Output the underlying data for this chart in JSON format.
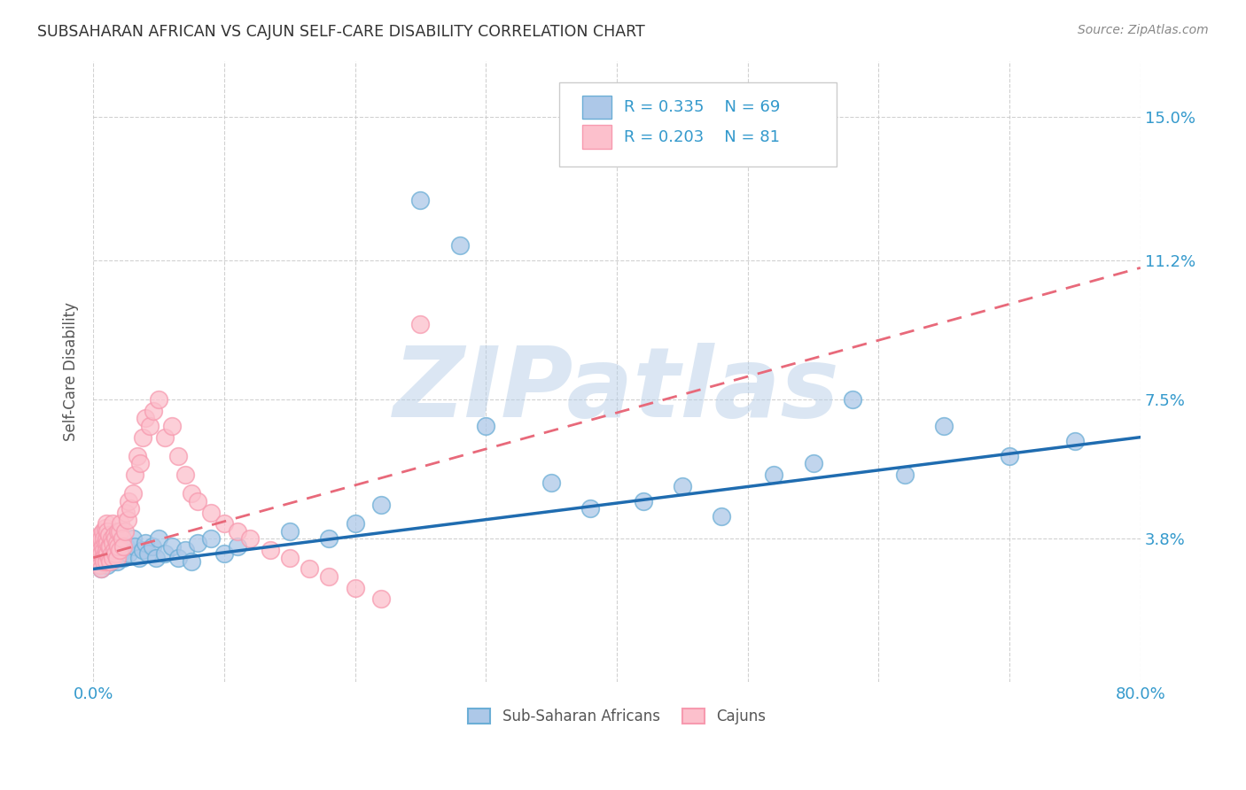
{
  "title": "SUBSAHARAN AFRICAN VS CAJUN SELF-CARE DISABILITY CORRELATION CHART",
  "source": "Source: ZipAtlas.com",
  "ylabel": "Self-Care Disability",
  "ytick_labels": [
    "3.8%",
    "7.5%",
    "11.2%",
    "15.0%"
  ],
  "ytick_values": [
    0.038,
    0.075,
    0.112,
    0.15
  ],
  "xlim": [
    0.0,
    0.8
  ],
  "ylim": [
    0.0,
    0.165
  ],
  "blue_R": 0.335,
  "blue_N": 69,
  "pink_R": 0.203,
  "pink_N": 81,
  "blue_label": "Sub-Saharan Africans",
  "pink_label": "Cajuns",
  "blue_face_color": "#adc8e8",
  "blue_edge_color": "#6baed6",
  "pink_face_color": "#fcc0cc",
  "pink_edge_color": "#f79aaf",
  "blue_line_color": "#1f6cb0",
  "pink_line_color": "#e8697a",
  "watermark_color": "#b8cfe8",
  "background_color": "#ffffff",
  "grid_color": "#cccccc",
  "title_color": "#333333",
  "tick_color": "#3399cc",
  "blue_trend_x0": 0.0,
  "blue_trend_y0": 0.03,
  "blue_trend_x1": 0.8,
  "blue_trend_y1": 0.065,
  "pink_trend_x0": 0.0,
  "pink_trend_y0": 0.033,
  "pink_trend_x1": 0.8,
  "pink_trend_y1": 0.11,
  "blue_x": [
    0.003,
    0.004,
    0.005,
    0.005,
    0.006,
    0.006,
    0.007,
    0.007,
    0.008,
    0.008,
    0.009,
    0.009,
    0.01,
    0.01,
    0.011,
    0.011,
    0.012,
    0.012,
    0.013,
    0.014,
    0.015,
    0.015,
    0.016,
    0.017,
    0.018,
    0.019,
    0.02,
    0.021,
    0.022,
    0.023,
    0.025,
    0.027,
    0.03,
    0.032,
    0.035,
    0.038,
    0.04,
    0.042,
    0.045,
    0.048,
    0.05,
    0.055,
    0.06,
    0.065,
    0.07,
    0.075,
    0.08,
    0.09,
    0.1,
    0.11,
    0.15,
    0.18,
    0.2,
    0.22,
    0.25,
    0.28,
    0.3,
    0.35,
    0.38,
    0.42,
    0.45,
    0.48,
    0.52,
    0.55,
    0.58,
    0.62,
    0.65,
    0.7,
    0.75
  ],
  "blue_y": [
    0.032,
    0.031,
    0.034,
    0.038,
    0.03,
    0.036,
    0.033,
    0.039,
    0.035,
    0.037,
    0.032,
    0.038,
    0.034,
    0.036,
    0.031,
    0.04,
    0.033,
    0.037,
    0.035,
    0.032,
    0.034,
    0.038,
    0.033,
    0.036,
    0.032,
    0.038,
    0.035,
    0.034,
    0.037,
    0.033,
    0.036,
    0.034,
    0.038,
    0.036,
    0.033,
    0.035,
    0.037,
    0.034,
    0.036,
    0.033,
    0.038,
    0.034,
    0.036,
    0.033,
    0.035,
    0.032,
    0.037,
    0.038,
    0.034,
    0.036,
    0.04,
    0.038,
    0.042,
    0.047,
    0.128,
    0.116,
    0.068,
    0.053,
    0.046,
    0.048,
    0.052,
    0.044,
    0.055,
    0.058,
    0.075,
    0.055,
    0.068,
    0.06,
    0.064
  ],
  "pink_x": [
    0.002,
    0.003,
    0.003,
    0.004,
    0.004,
    0.005,
    0.005,
    0.005,
    0.006,
    0.006,
    0.006,
    0.007,
    0.007,
    0.007,
    0.008,
    0.008,
    0.008,
    0.009,
    0.009,
    0.009,
    0.01,
    0.01,
    0.01,
    0.01,
    0.011,
    0.011,
    0.011,
    0.012,
    0.012,
    0.012,
    0.013,
    0.013,
    0.014,
    0.014,
    0.015,
    0.015,
    0.015,
    0.016,
    0.016,
    0.017,
    0.017,
    0.018,
    0.018,
    0.019,
    0.019,
    0.02,
    0.02,
    0.021,
    0.022,
    0.023,
    0.024,
    0.025,
    0.026,
    0.027,
    0.028,
    0.03,
    0.032,
    0.034,
    0.036,
    0.038,
    0.04,
    0.043,
    0.046,
    0.05,
    0.055,
    0.06,
    0.065,
    0.07,
    0.075,
    0.08,
    0.09,
    0.1,
    0.11,
    0.12,
    0.135,
    0.15,
    0.165,
    0.18,
    0.2,
    0.22,
    0.25
  ],
  "pink_y": [
    0.034,
    0.033,
    0.036,
    0.032,
    0.038,
    0.031,
    0.035,
    0.039,
    0.03,
    0.034,
    0.038,
    0.033,
    0.036,
    0.04,
    0.032,
    0.035,
    0.038,
    0.034,
    0.037,
    0.041,
    0.032,
    0.035,
    0.038,
    0.042,
    0.034,
    0.037,
    0.04,
    0.033,
    0.036,
    0.039,
    0.032,
    0.036,
    0.034,
    0.038,
    0.033,
    0.037,
    0.042,
    0.035,
    0.039,
    0.034,
    0.038,
    0.033,
    0.037,
    0.036,
    0.04,
    0.035,
    0.04,
    0.042,
    0.038,
    0.036,
    0.04,
    0.045,
    0.043,
    0.048,
    0.046,
    0.05,
    0.055,
    0.06,
    0.058,
    0.065,
    0.07,
    0.068,
    0.072,
    0.075,
    0.065,
    0.068,
    0.06,
    0.055,
    0.05,
    0.048,
    0.045,
    0.042,
    0.04,
    0.038,
    0.035,
    0.033,
    0.03,
    0.028,
    0.025,
    0.022,
    0.095
  ]
}
